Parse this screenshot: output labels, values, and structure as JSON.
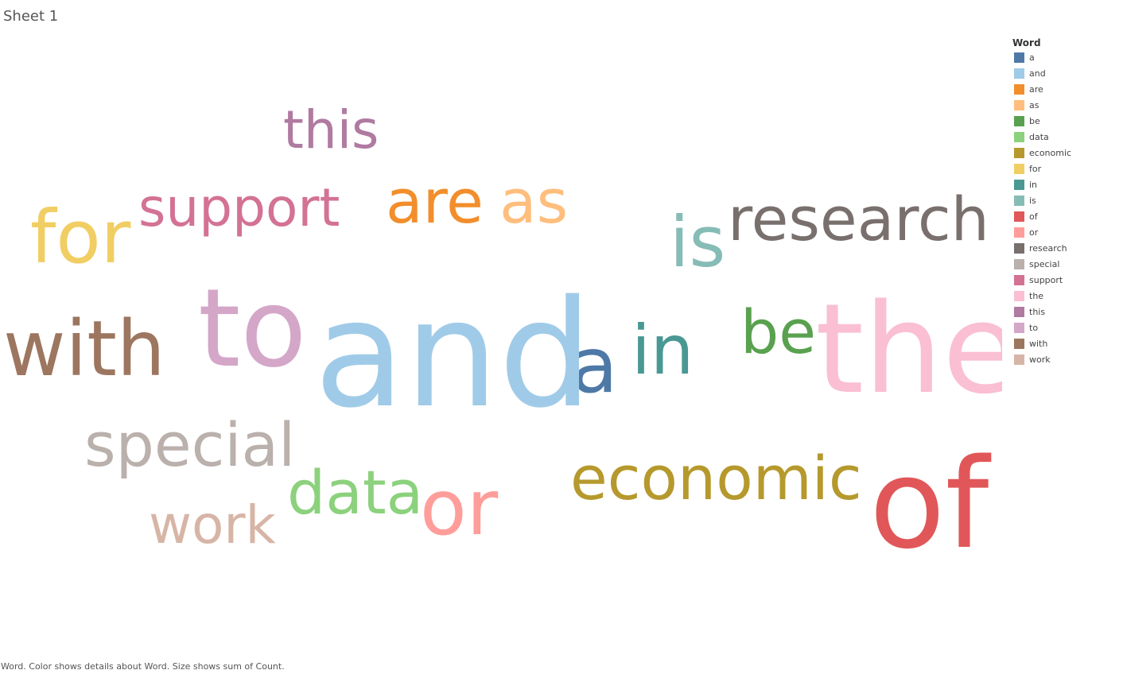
{
  "sheet": {
    "title": "Sheet 1"
  },
  "legend": {
    "title": "Word"
  },
  "caption": "Word.  Color shows details about Word.  Size shows sum of Count.",
  "chart_data": {
    "type": "word-cloud",
    "size_measure": "sum of Count",
    "color_dimension": "Word",
    "words": [
      {
        "word": "a",
        "color": "#4e79a7"
      },
      {
        "word": "and",
        "color": "#a0cbe8"
      },
      {
        "word": "are",
        "color": "#f28e2b"
      },
      {
        "word": "as",
        "color": "#ffbe7d"
      },
      {
        "word": "be",
        "color": "#59a14f"
      },
      {
        "word": "data",
        "color": "#8cd17d"
      },
      {
        "word": "economic",
        "color": "#b6992d"
      },
      {
        "word": "for",
        "color": "#f1ce63"
      },
      {
        "word": "in",
        "color": "#499894"
      },
      {
        "word": "is",
        "color": "#86bcb6"
      },
      {
        "word": "of",
        "color": "#e15759"
      },
      {
        "word": "or",
        "color": "#ff9d9a"
      },
      {
        "word": "research",
        "color": "#79706e"
      },
      {
        "word": "special",
        "color": "#bab0ac"
      },
      {
        "word": "support",
        "color": "#d37295"
      },
      {
        "word": "the",
        "color": "#fabfd2"
      },
      {
        "word": "this",
        "color": "#b07aa1"
      },
      {
        "word": "to",
        "color": "#d4a6c8"
      },
      {
        "word": "with",
        "color": "#9d7660"
      },
      {
        "word": "work",
        "color": "#d7b5a6"
      }
    ]
  }
}
